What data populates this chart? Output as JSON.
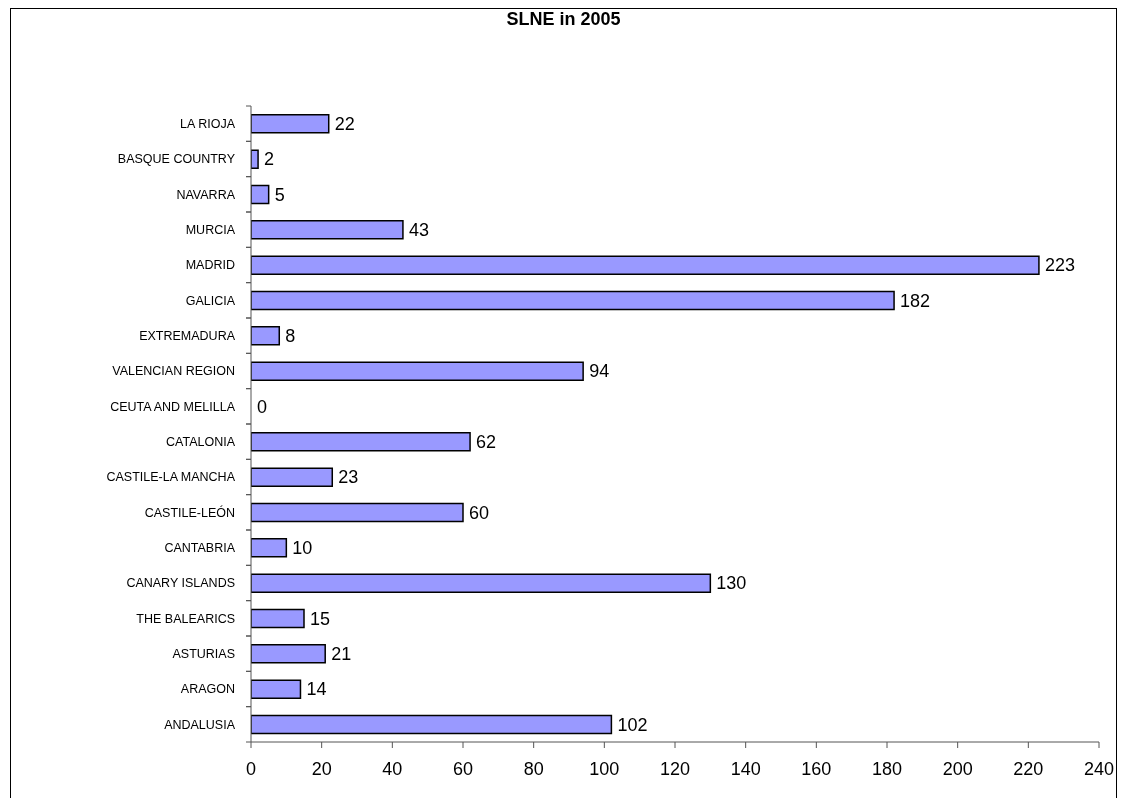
{
  "chart_data": {
    "type": "bar",
    "orientation": "horizontal",
    "title": "SLNE in 2005",
    "categories": [
      "LA RIOJA",
      "BASQUE COUNTRY",
      "NAVARRA",
      "MURCIA",
      "MADRID",
      "GALICIA",
      "EXTREMADURA",
      "VALENCIAN REGION",
      "CEUTA AND MELILLA",
      "CATALONIA",
      "CASTILE-LA MANCHA",
      "CASTILE-LEÓN",
      "CANTABRIA",
      "CANARY ISLANDS",
      "THE BALEARICS",
      "ASTURIAS",
      "ARAGON",
      "ANDALUSIA"
    ],
    "values": [
      22,
      2,
      5,
      43,
      223,
      182,
      8,
      94,
      0,
      62,
      23,
      60,
      10,
      130,
      15,
      21,
      14,
      102
    ],
    "color": "#9999ff",
    "xlim": [
      0,
      240
    ],
    "xticks": [
      0,
      20,
      40,
      60,
      80,
      100,
      120,
      140,
      160,
      180,
      200,
      220,
      240
    ],
    "data_labels": true
  }
}
